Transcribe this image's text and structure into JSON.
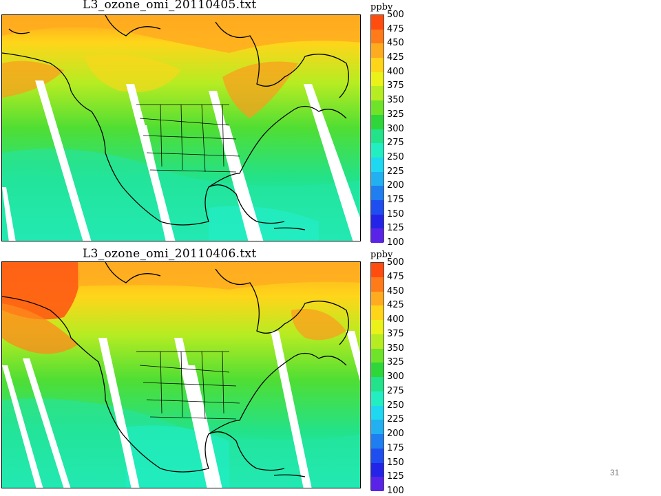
{
  "slide": {
    "page_number": "31"
  },
  "colorbar": {
    "unit": "ppbv",
    "levels": [
      "500",
      "475",
      "450",
      "425",
      "400",
      "375",
      "350",
      "325",
      "300",
      "275",
      "250",
      "225",
      "200",
      "175",
      "150",
      "125",
      "100"
    ],
    "colors": [
      "#ff4d10",
      "#ff7a18",
      "#ffab20",
      "#ffd51a",
      "#eaf21a",
      "#b6ec22",
      "#6fe22a",
      "#2fd63a",
      "#22e28a",
      "#22eec2",
      "#1ed8f2",
      "#22b0f0",
      "#1f7ef0",
      "#1e4ef0",
      "#2424e8",
      "#5a24e8",
      "#9626ee"
    ]
  },
  "maps": [
    {
      "title": "L3_ozone_omi_20110405.txt",
      "region": "North America",
      "field": "ozone",
      "unit": "ppbv"
    },
    {
      "title": "L3_ozone_omi_20110406.txt",
      "region": "North America",
      "field": "ozone",
      "unit": "ppbv"
    }
  ]
}
